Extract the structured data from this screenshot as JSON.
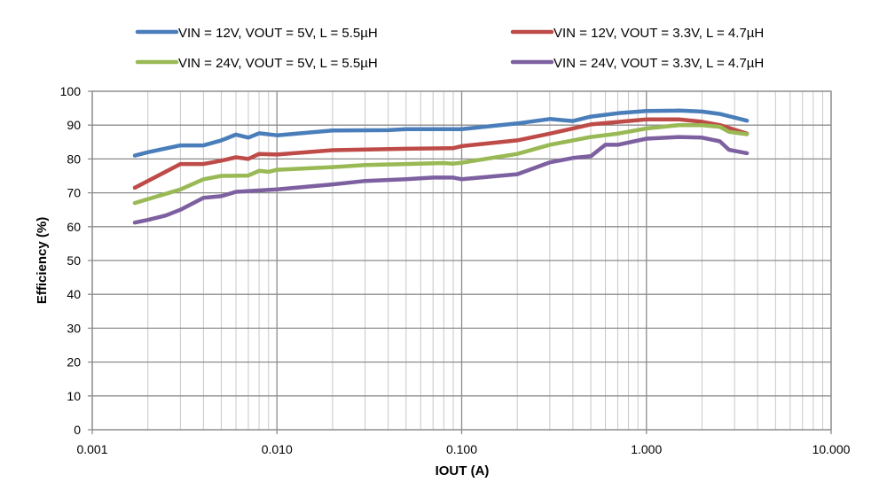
{
  "chart_data": {
    "type": "line",
    "title": "",
    "xlabel": "IOUT (A)",
    "ylabel": "Efficiency (%)",
    "xscale": "log",
    "xlim": [
      0.001,
      10
    ],
    "ylim": [
      0,
      100
    ],
    "grid": true,
    "legend_placement": "top",
    "x_tick_labels": [
      "0.001",
      "0.010",
      "0.100",
      "1.000",
      "10.000"
    ],
    "x_ticks": [
      0.001,
      0.01,
      0.1,
      1,
      10
    ],
    "y_ticks": [
      0,
      10,
      20,
      30,
      40,
      50,
      60,
      70,
      80,
      90,
      100
    ],
    "series": [
      {
        "name": "VIN = 12V, VOUT = 5V, L = 5.5µH",
        "color": "#4a7ebb",
        "x": [
          0.0017,
          0.002,
          0.003,
          0.004,
          0.005,
          0.006,
          0.007,
          0.008,
          0.01,
          0.02,
          0.04,
          0.05,
          0.1,
          0.2,
          0.3,
          0.4,
          0.5,
          0.7,
          1,
          1.5,
          2,
          2.5,
          3.5
        ],
        "y": [
          81,
          82,
          84,
          84,
          85.5,
          87.2,
          86.3,
          87.6,
          87,
          88.4,
          88.5,
          88.8,
          88.8,
          90.5,
          91.8,
          91.2,
          92.5,
          93.5,
          94.2,
          94.3,
          94,
          93.3,
          91.3
        ]
      },
      {
        "name": "VIN = 12V, VOUT = 3.3V, L = 4.7µH",
        "color": "#be4b48",
        "x": [
          0.0017,
          0.002,
          0.003,
          0.004,
          0.005,
          0.006,
          0.007,
          0.008,
          0.01,
          0.02,
          0.05,
          0.09,
          0.1,
          0.2,
          0.3,
          0.5,
          1,
          1.5,
          2,
          2.5,
          3.5
        ],
        "y": [
          71.5,
          73.5,
          78.5,
          78.5,
          79.5,
          80.5,
          80,
          81.5,
          81.3,
          82.6,
          83,
          83.2,
          83.8,
          85.5,
          87.5,
          90.2,
          91.7,
          91.7,
          91,
          90,
          87.5
        ]
      },
      {
        "name": "VIN = 24V, VOUT = 5V, L = 5.5µH",
        "color": "#98b954",
        "x": [
          0.0017,
          0.003,
          0.004,
          0.005,
          0.007,
          0.008,
          0.009,
          0.01,
          0.02,
          0.03,
          0.05,
          0.08,
          0.09,
          0.1,
          0.2,
          0.3,
          0.5,
          0.7,
          1,
          1.5,
          2,
          2.5,
          2.8,
          3.5
        ],
        "y": [
          67,
          71,
          74,
          75,
          75.1,
          76.5,
          76.2,
          76.8,
          77.6,
          78.2,
          78.5,
          78.8,
          78.6,
          78.9,
          81.5,
          84.2,
          86.5,
          87.5,
          89,
          90,
          90,
          89.5,
          88,
          87.3
        ]
      },
      {
        "name": "VIN = 24V, VOUT = 3.3V, L = 4.7µH",
        "color": "#7d60a0",
        "x": [
          0.0017,
          0.002,
          0.0025,
          0.003,
          0.004,
          0.005,
          0.006,
          0.01,
          0.02,
          0.03,
          0.05,
          0.07,
          0.09,
          0.1,
          0.2,
          0.3,
          0.4,
          0.5,
          0.6,
          0.7,
          1,
          1.5,
          2,
          2.5,
          2.8,
          3.5
        ],
        "y": [
          61.2,
          62,
          63.3,
          65,
          68.5,
          69,
          70.3,
          71,
          72.5,
          73.5,
          74,
          74.5,
          74.5,
          74,
          75.5,
          79,
          80.3,
          80.8,
          84.2,
          84.2,
          86,
          86.5,
          86.3,
          85.2,
          82.7,
          81.7
        ]
      }
    ]
  }
}
